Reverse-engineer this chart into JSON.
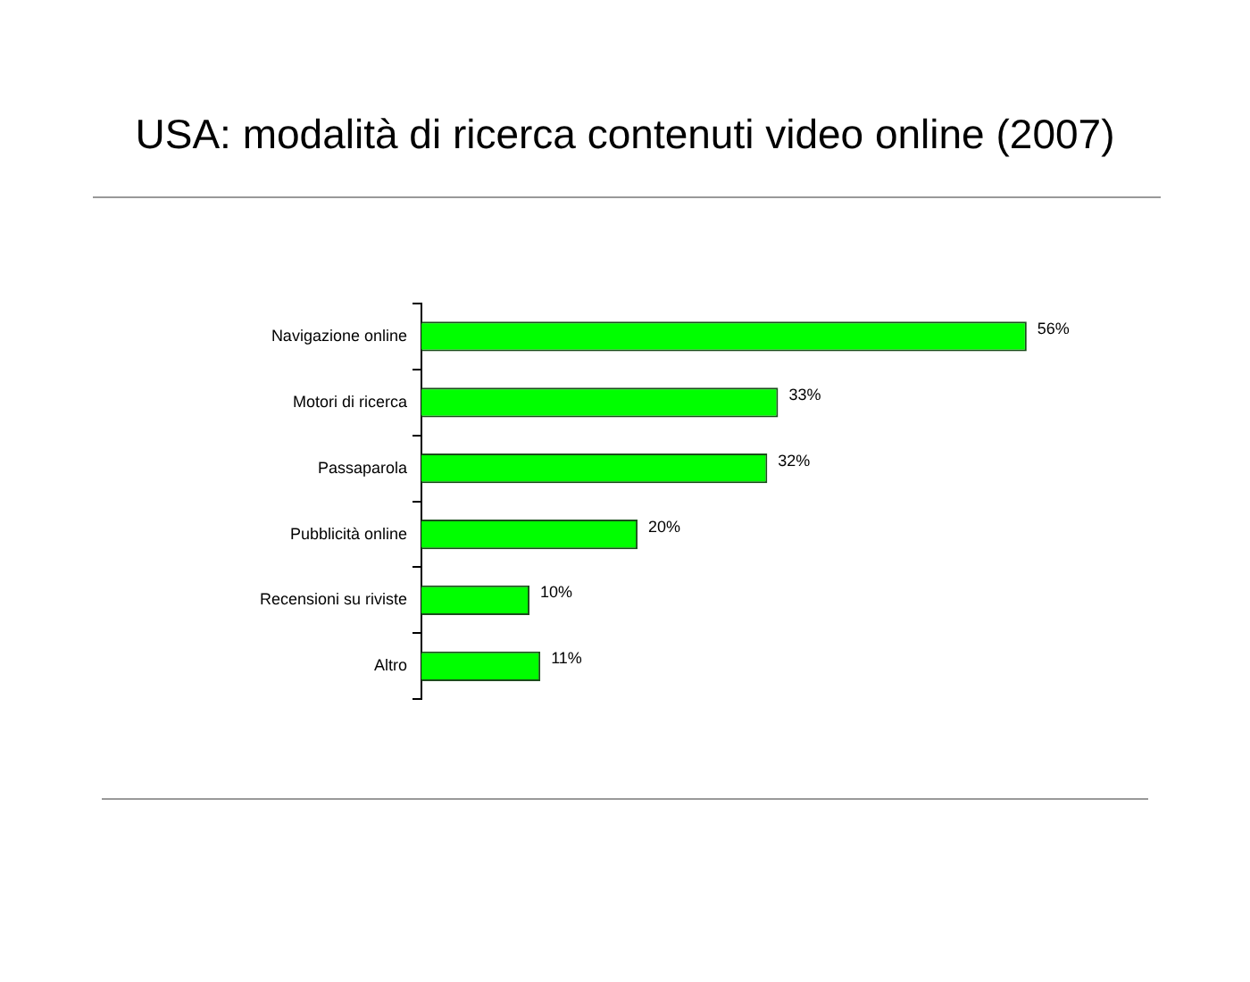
{
  "chart_data": {
    "type": "bar",
    "orientation": "horizontal",
    "title": "USA: modalità di ricerca contenuti video online (2007)",
    "categories": [
      "Navigazione online",
      "Motori di ricerca",
      "Passaparola",
      "Pubblicità online",
      "Recensioni su riviste",
      "Altro"
    ],
    "values": [
      56,
      33,
      32,
      20,
      10,
      11
    ],
    "value_labels": [
      "56%",
      "33%",
      "32%",
      "20%",
      "10%",
      "11%"
    ],
    "color": "#00ff00",
    "grid": false,
    "legend": false
  }
}
